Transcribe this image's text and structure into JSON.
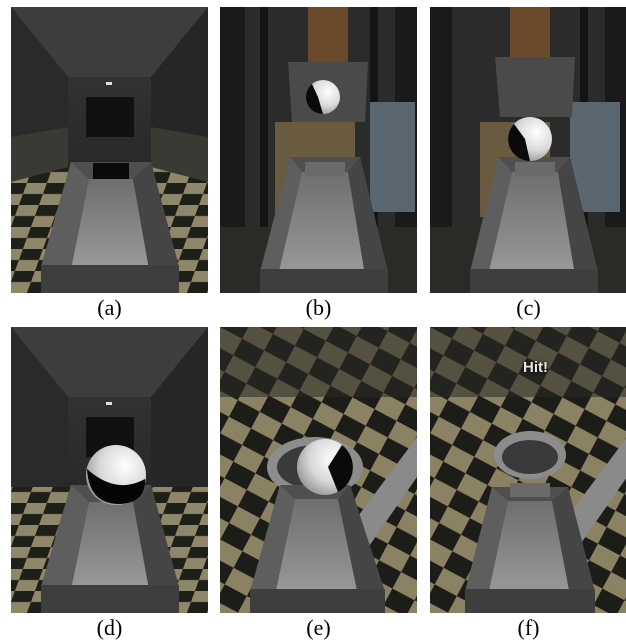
{
  "figure": {
    "panels": [
      {
        "id": "a",
        "caption": "(a)"
      },
      {
        "id": "b",
        "caption": "(b)"
      },
      {
        "id": "c",
        "caption": "(c)"
      },
      {
        "id": "d",
        "caption": "(d)"
      },
      {
        "id": "e",
        "caption": "(e)"
      },
      {
        "id": "f",
        "caption": "(f)",
        "overlay_text": "Hit!"
      }
    ]
  },
  "colors": {
    "chute": "#5c5c5c",
    "chute_floor": "#8a8a8a",
    "checker_light": "#8f8769",
    "checker_dark": "#1f1f1a",
    "ball_light": "#f2f2f2",
    "ball_dark": "#0a0a0a"
  }
}
